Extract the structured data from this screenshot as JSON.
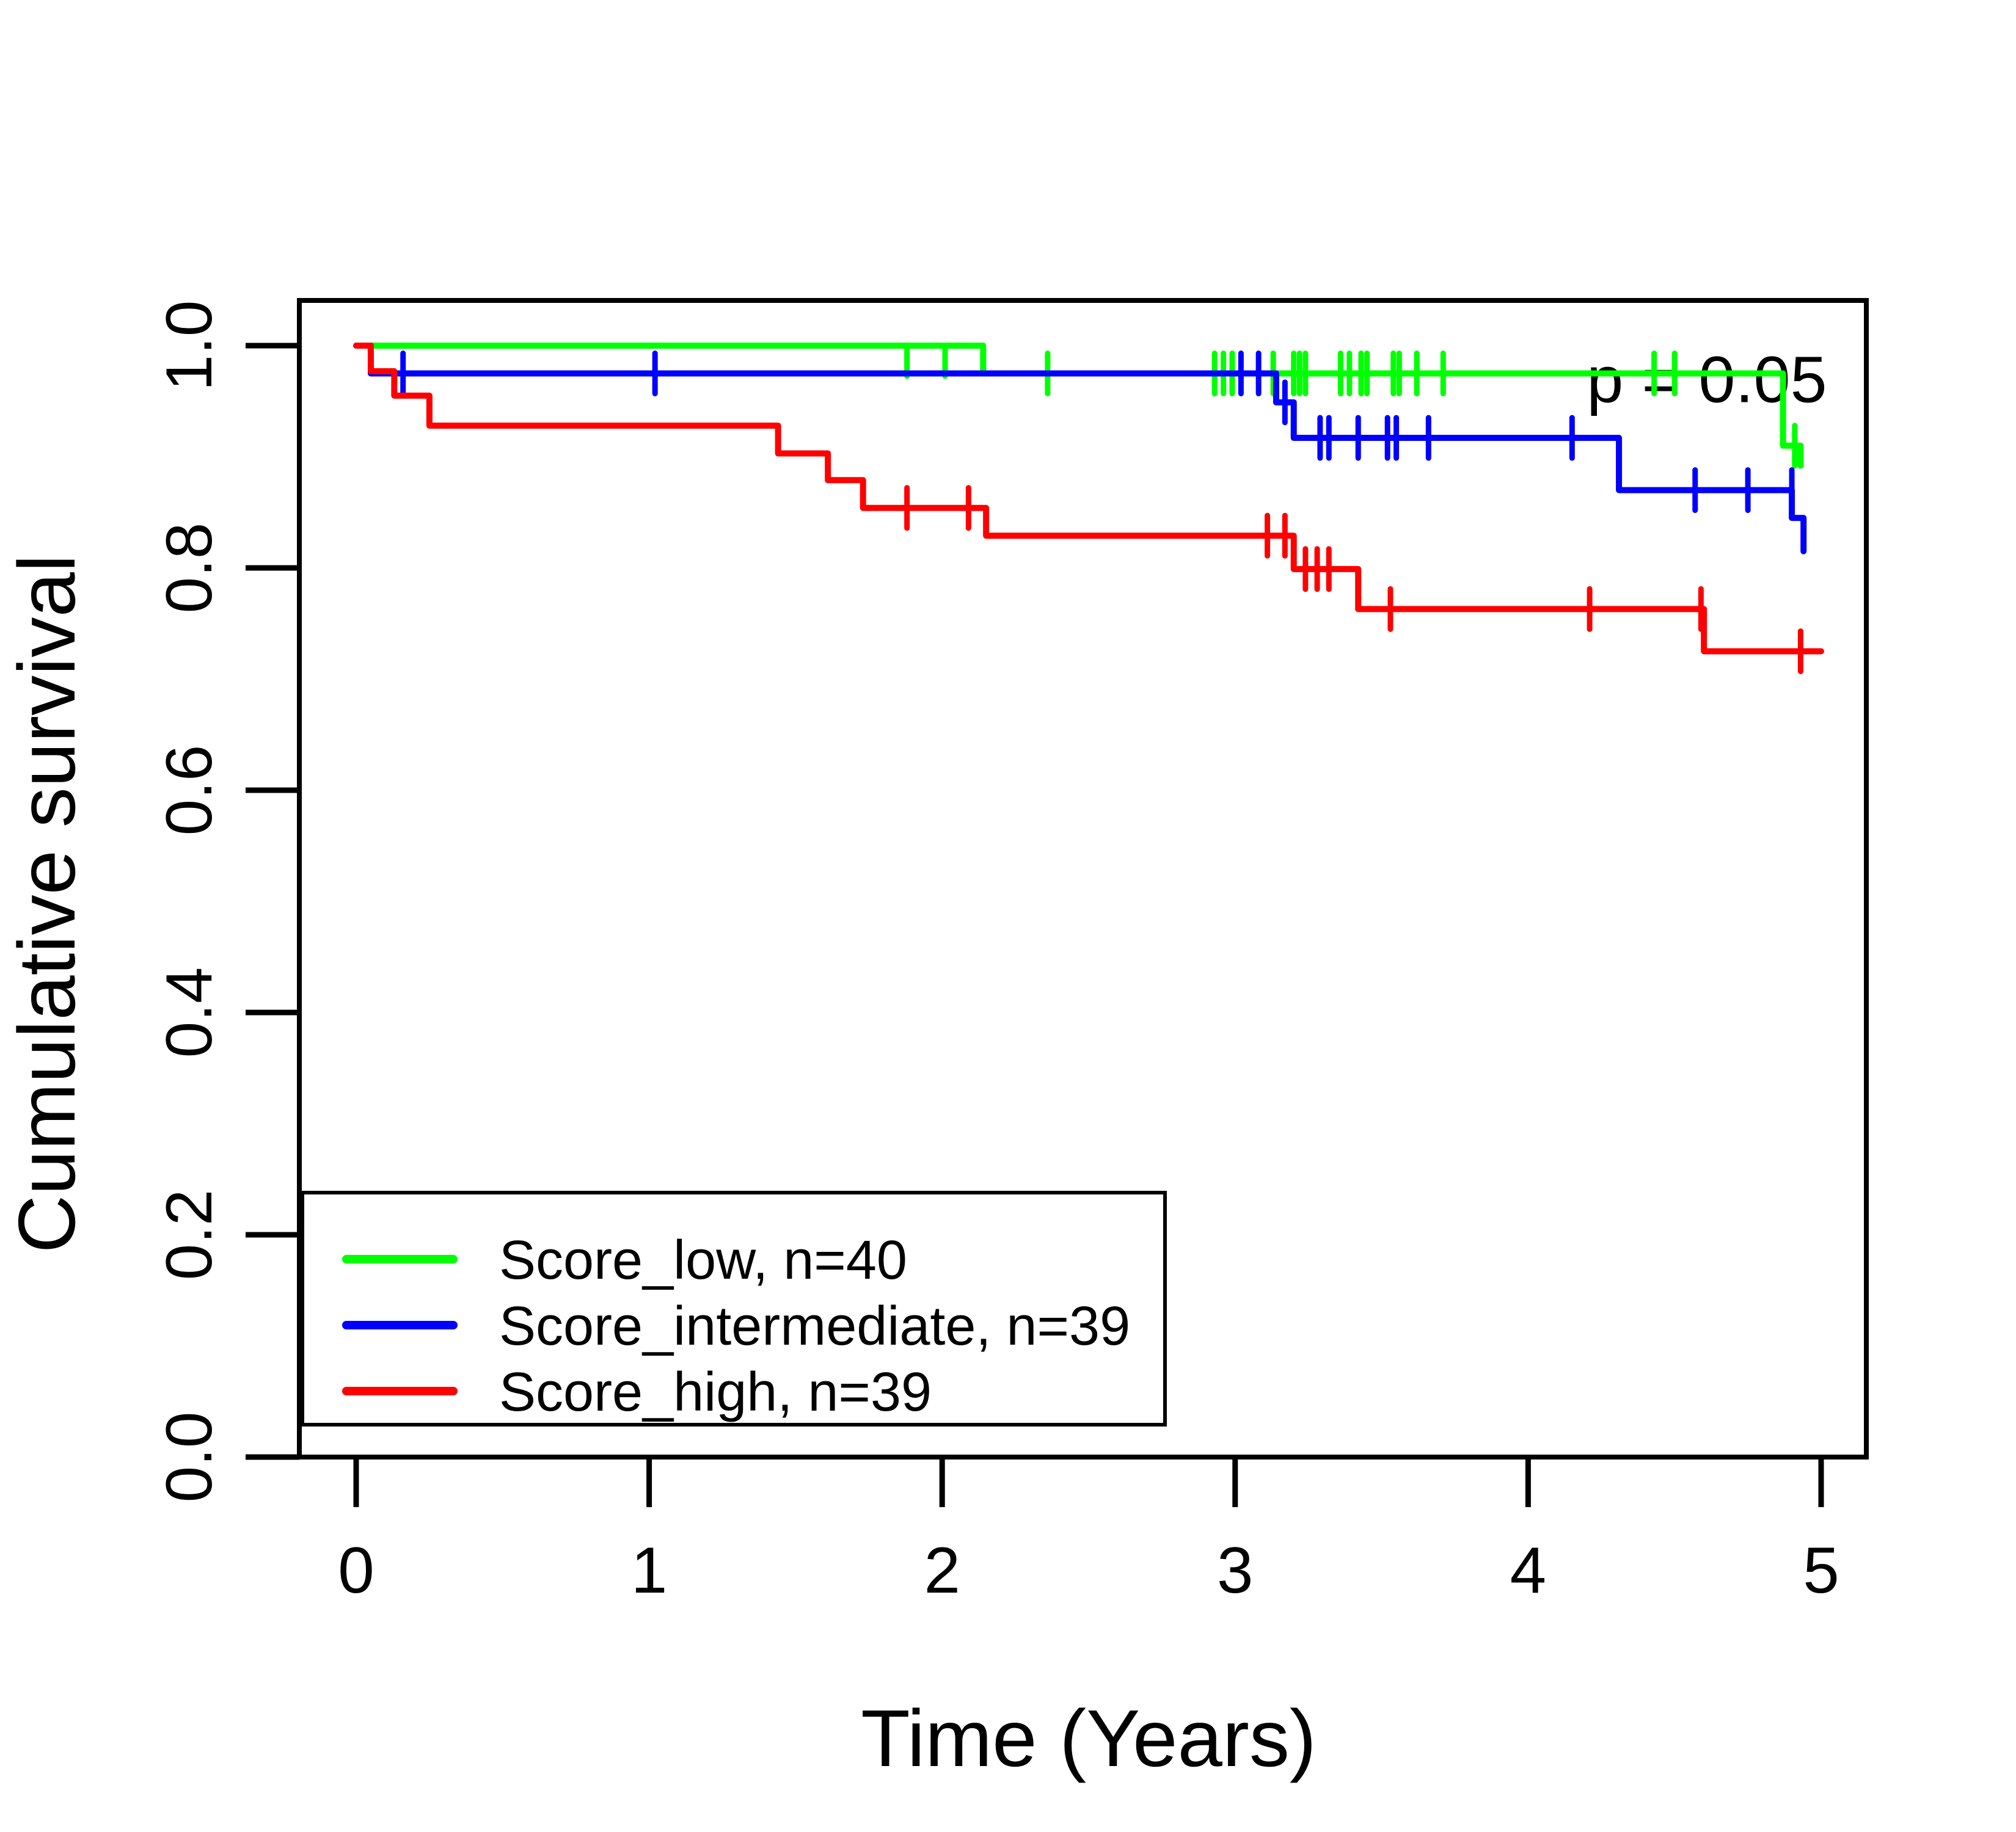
{
  "chart_data": {
    "type": "line",
    "subtype": "kaplan-meier-step",
    "title": "",
    "xlabel": "Time (Years)",
    "ylabel": "Cumulative survival",
    "xlim": [
      0,
      5
    ],
    "ylim": [
      0.0,
      1.0
    ],
    "grid": false,
    "x_ticks": [
      0,
      1,
      2,
      3,
      4,
      5
    ],
    "x_tick_labels": [
      "0",
      "1",
      "2",
      "3",
      "4",
      "5"
    ],
    "y_ticks": [
      0.0,
      0.2,
      0.4,
      0.6,
      0.8,
      1.0
    ],
    "y_tick_labels": [
      "0.0",
      "0.2",
      "0.4",
      "0.6",
      "0.8",
      "1.0"
    ],
    "annotation": {
      "text": "p = 0.05",
      "x": 4.61,
      "y": 0.97
    },
    "legend": {
      "position": "bottom-left",
      "entries": [
        {
          "label": "Score_low, n=40",
          "color": "#00FF00"
        },
        {
          "label": "Score_intermediate, n=39",
          "color": "#0000FF"
        },
        {
          "label": "Score_high, n=39",
          "color": "#FF0000"
        }
      ]
    },
    "series": [
      {
        "name": "Score_low",
        "n": 40,
        "color": "#00FF00",
        "steps": [
          [
            0,
            1.0
          ],
          [
            2.14,
            0.975
          ],
          [
            4.87,
            0.91
          ],
          [
            4.93,
            0.892
          ]
        ],
        "end_time": 4.93,
        "censor_marks": [
          [
            1.88,
            1.0
          ],
          [
            2.01,
            1.0
          ],
          [
            2.36,
            0.975
          ],
          [
            2.93,
            0.975
          ],
          [
            2.96,
            0.975
          ],
          [
            2.99,
            0.975
          ],
          [
            3.13,
            0.975
          ],
          [
            3.2,
            0.975
          ],
          [
            3.22,
            0.975
          ],
          [
            3.24,
            0.975
          ],
          [
            3.36,
            0.975
          ],
          [
            3.39,
            0.975
          ],
          [
            3.43,
            0.975
          ],
          [
            3.45,
            0.975
          ],
          [
            3.54,
            0.975
          ],
          [
            3.56,
            0.975
          ],
          [
            3.62,
            0.975
          ],
          [
            3.71,
            0.975
          ],
          [
            4.43,
            0.975
          ],
          [
            4.5,
            0.975
          ],
          [
            4.91,
            0.91
          ]
        ]
      },
      {
        "name": "Score_intermediate",
        "n": 39,
        "color": "#0000FF",
        "steps": [
          [
            0,
            1.0
          ],
          [
            0.05,
            0.975
          ],
          [
            3.14,
            0.949
          ],
          [
            3.2,
            0.917
          ],
          [
            4.31,
            0.87
          ],
          [
            4.9,
            0.845
          ],
          [
            4.94,
            0.815
          ]
        ],
        "end_time": 4.94,
        "censor_marks": [
          [
            0.16,
            0.975
          ],
          [
            1.02,
            0.975
          ],
          [
            3.02,
            0.975
          ],
          [
            3.08,
            0.975
          ],
          [
            3.17,
            0.949
          ],
          [
            3.29,
            0.917
          ],
          [
            3.32,
            0.917
          ],
          [
            3.42,
            0.917
          ],
          [
            3.52,
            0.917
          ],
          [
            3.55,
            0.917
          ],
          [
            3.66,
            0.917
          ],
          [
            4.15,
            0.917
          ],
          [
            4.57,
            0.87
          ],
          [
            4.75,
            0.87
          ],
          [
            4.9,
            0.87
          ]
        ]
      },
      {
        "name": "Score_high",
        "n": 39,
        "color": "#FF0000",
        "steps": [
          [
            0,
            1.0
          ],
          [
            0.05,
            0.977
          ],
          [
            0.13,
            0.955
          ],
          [
            0.25,
            0.928
          ],
          [
            1.44,
            0.903
          ],
          [
            1.61,
            0.879
          ],
          [
            1.73,
            0.854
          ],
          [
            2.15,
            0.829
          ],
          [
            3.2,
            0.799
          ],
          [
            3.42,
            0.763
          ],
          [
            4.6,
            0.725
          ]
        ],
        "end_time": 5.0,
        "censor_marks": [
          [
            1.88,
            0.854
          ],
          [
            2.09,
            0.854
          ],
          [
            3.11,
            0.829
          ],
          [
            3.17,
            0.829
          ],
          [
            3.24,
            0.799
          ],
          [
            3.28,
            0.799
          ],
          [
            3.32,
            0.799
          ],
          [
            3.53,
            0.763
          ],
          [
            4.21,
            0.763
          ],
          [
            4.59,
            0.763
          ],
          [
            4.93,
            0.725
          ]
        ]
      }
    ]
  }
}
